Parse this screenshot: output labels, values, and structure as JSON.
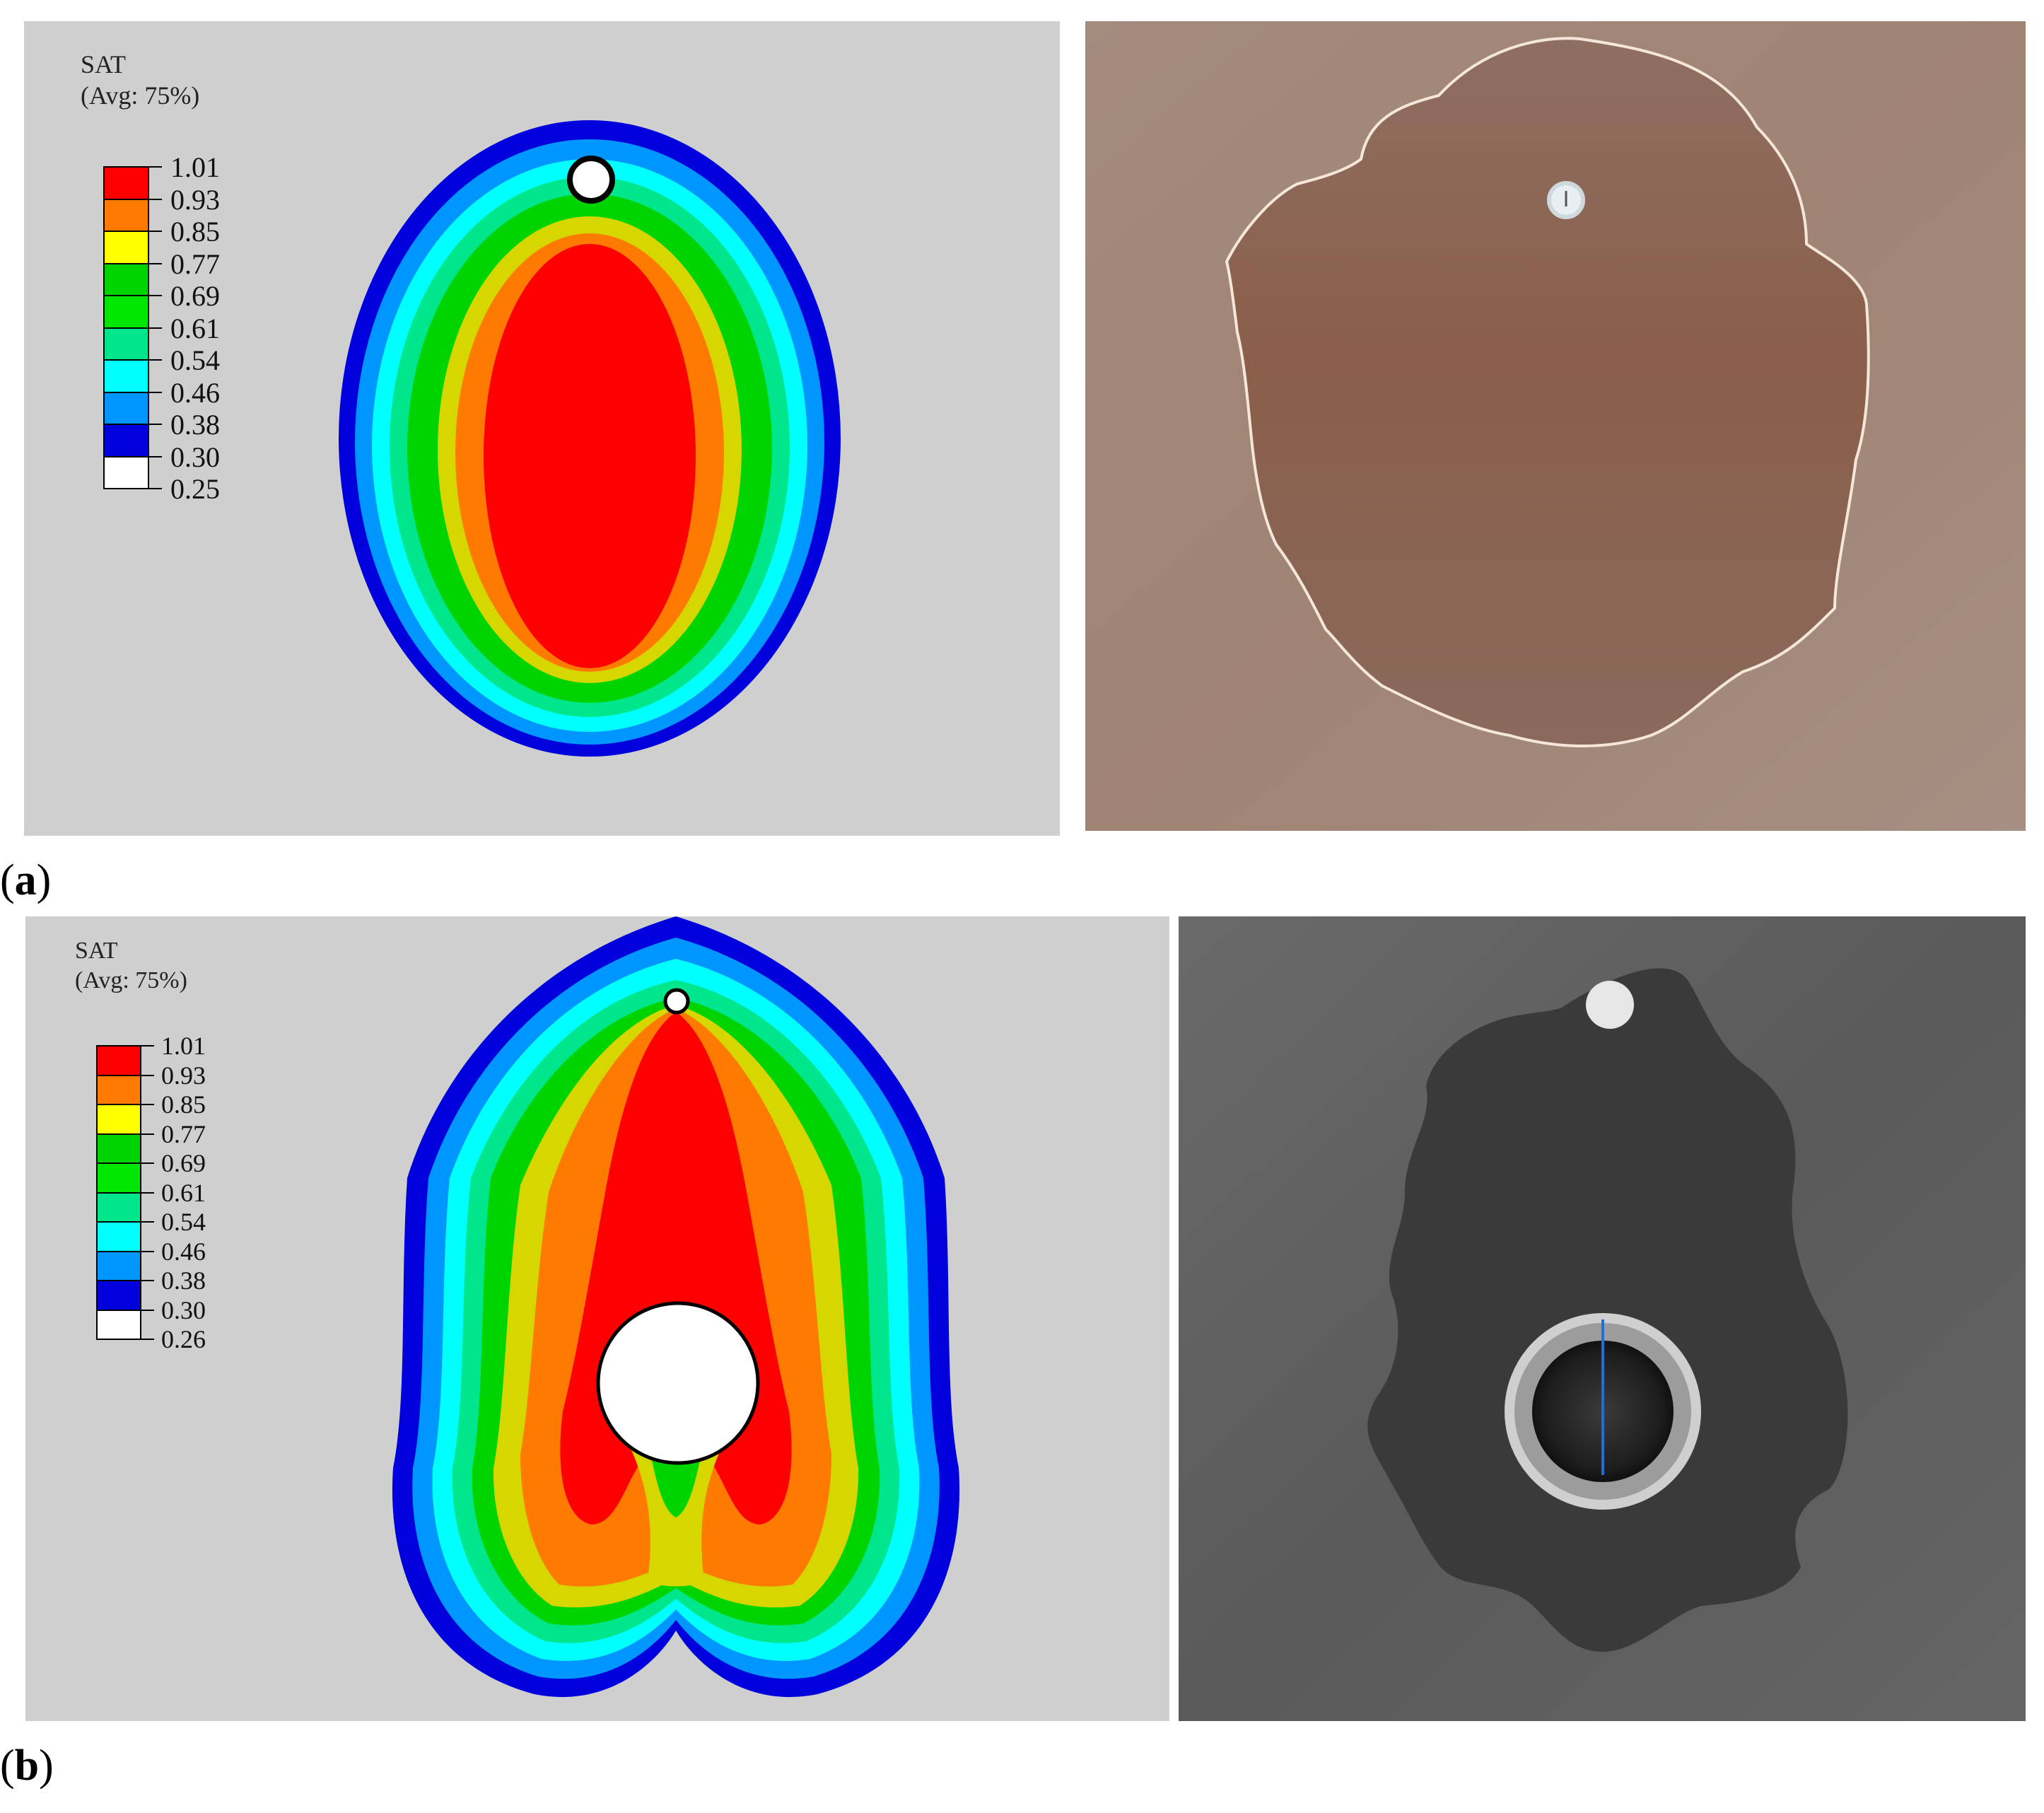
{
  "figure": {
    "panels": [
      {
        "label_open": "(",
        "label_letter": "a",
        "label_close": ")",
        "legend": {
          "title": "SAT",
          "subtitle": "(Avg: 75%)",
          "levels": [
            "1.01",
            "0.93",
            "0.85",
            "0.77",
            "0.69",
            "0.61",
            "0.54",
            "0.46",
            "0.38",
            "0.30",
            "0.25"
          ]
        }
      },
      {
        "label_open": "(",
        "label_letter": "b",
        "label_close": ")",
        "legend": {
          "title": "SAT",
          "subtitle": "(Avg: 75%)",
          "levels": [
            "1.01",
            "0.93",
            "0.85",
            "0.77",
            "0.69",
            "0.61",
            "0.54",
            "0.46",
            "0.38",
            "0.30",
            "0.26"
          ]
        }
      }
    ],
    "colors": {
      "band_colors": [
        "#ff0000",
        "#ff7a00",
        "#ffff00",
        "#00d400",
        "#00e600",
        "#00e68c",
        "#00ffff",
        "#0096ff",
        "#0000dc",
        "#ffffff"
      ],
      "plot_background": "#cfcfcf"
    }
  }
}
